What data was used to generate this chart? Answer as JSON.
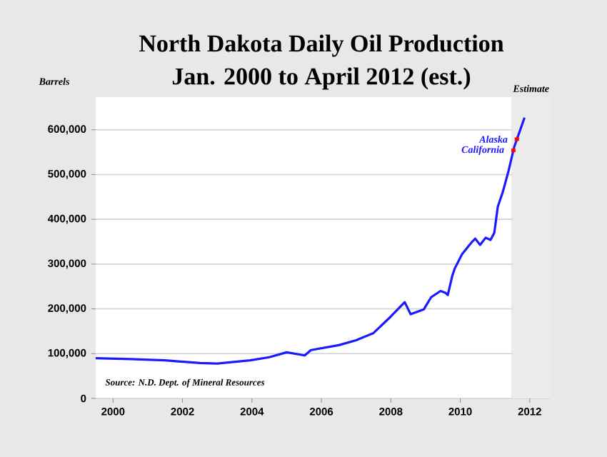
{
  "chart_data": {
    "type": "line",
    "title": "North Dakota Daily Oil Production",
    "subtitle": "Jan. 2000 to April 2012 (est.)",
    "ylabel": "Barrels",
    "x": [
      2000.0,
      2001.0,
      2002.0,
      2003.0,
      2003.5,
      2004.45,
      2005.0,
      2005.5,
      2006.02,
      2006.2,
      2007.0,
      2007.5,
      2008.0,
      2008.5,
      2008.9,
      2009.07,
      2009.45,
      2009.66,
      2009.93,
      2010.07,
      2010.14,
      2010.27,
      2010.34,
      2010.55,
      2010.82,
      2010.93,
      2011.07,
      2011.23,
      2011.37,
      2011.48,
      2011.58,
      2011.72,
      2011.89,
      2012.05,
      2012.35
    ],
    "series": [
      {
        "color": "#1a1aff",
        "values": [
          90000,
          88000,
          85000,
          79000,
          78000,
          85000,
          92000,
          103000,
          96000,
          108000,
          119000,
          130000,
          146000,
          183000,
          215000,
          188000,
          199000,
          226000,
          240000,
          236000,
          231000,
          274000,
          290000,
          322000,
          348000,
          357000,
          343000,
          359000,
          354000,
          370000,
          428000,
          460000,
          508000,
          561000,
          627000
        ]
      }
    ],
    "xlim": [
      2000.0,
      2013.08
    ],
    "ylim": [
      0,
      673000
    ],
    "xticks": [
      {
        "value": 2000.5,
        "label": "2000"
      },
      {
        "value": 2002.5,
        "label": "2002"
      },
      {
        "value": 2004.5,
        "label": "2004"
      },
      {
        "value": 2006.5,
        "label": "2006"
      },
      {
        "value": 2008.5,
        "label": "2008"
      },
      {
        "value": 2010.5,
        "label": "2010"
      },
      {
        "value": 2012.5,
        "label": "2012"
      }
    ],
    "yticks": [
      0,
      {
        "value": 100000,
        "label": "100,000"
      },
      {
        "value": 200000,
        "label": "200,000"
      },
      {
        "value": 300000,
        "label": "300,000"
      },
      {
        "value": 400000,
        "label": "400,000"
      },
      {
        "value": 500000,
        "label": "500,000"
      },
      {
        "value": 600000,
        "label": "600,000"
      }
    ],
    "bands": [
      {
        "axis": "x",
        "from": 2012.0,
        "to": 2013.08,
        "label": "Estimate",
        "color": "#ebebeb"
      }
    ],
    "annotations": [
      {
        "text": "Alaska",
        "x": 2012.13,
        "y": 579000
      },
      {
        "text": "California",
        "x": 2012.03,
        "y": 554000
      },
      "Source: N.D. Dept. of Mineral Resources"
    ],
    "grid": "y"
  }
}
